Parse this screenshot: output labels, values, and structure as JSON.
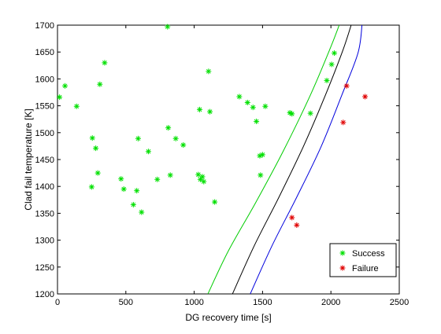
{
  "chart_data": {
    "type": "scatter",
    "title": "",
    "xlabel": "DG recovery time [s]",
    "ylabel": "Clad fail temperature [K]",
    "xlim": [
      0,
      2500
    ],
    "ylim": [
      1200,
      1700
    ],
    "xticks": [
      0,
      500,
      1000,
      1500,
      2000,
      2500
    ],
    "yticks": [
      1200,
      1250,
      1300,
      1350,
      1400,
      1450,
      1500,
      1550,
      1600,
      1650,
      1700
    ],
    "grid": false,
    "legend_position": "bottom-right",
    "series": [
      {
        "name": "Success",
        "color": "#00e000",
        "marker": "asterisk",
        "points": [
          [
            15,
            1566
          ],
          [
            55,
            1587
          ],
          [
            140,
            1549
          ],
          [
            250,
            1399
          ],
          [
            255,
            1490
          ],
          [
            280,
            1471
          ],
          [
            295,
            1425
          ],
          [
            310,
            1590
          ],
          [
            345,
            1630
          ],
          [
            465,
            1414
          ],
          [
            485,
            1395
          ],
          [
            555,
            1366
          ],
          [
            580,
            1392
          ],
          [
            590,
            1489
          ],
          [
            615,
            1352
          ],
          [
            665,
            1465
          ],
          [
            730,
            1413
          ],
          [
            805,
            1697
          ],
          [
            810,
            1509
          ],
          [
            825,
            1421
          ],
          [
            865,
            1489
          ],
          [
            920,
            1477
          ],
          [
            1030,
            1422
          ],
          [
            1040,
            1543
          ],
          [
            1045,
            1413
          ],
          [
            1060,
            1418
          ],
          [
            1070,
            1409
          ],
          [
            1105,
            1614
          ],
          [
            1115,
            1539
          ],
          [
            1150,
            1371
          ],
          [
            1330,
            1567
          ],
          [
            1390,
            1556
          ],
          [
            1430,
            1547
          ],
          [
            1455,
            1521
          ],
          [
            1480,
            1457
          ],
          [
            1485,
            1421
          ],
          [
            1500,
            1459
          ],
          [
            1520,
            1549
          ],
          [
            1700,
            1537
          ],
          [
            1715,
            1535
          ],
          [
            1850,
            1536
          ],
          [
            1970,
            1597
          ],
          [
            2005,
            1627
          ],
          [
            2025,
            1648
          ]
        ]
      },
      {
        "name": "Failure",
        "color": "#e00000",
        "marker": "asterisk",
        "points": [
          [
            1715,
            1342
          ],
          [
            1750,
            1328
          ],
          [
            2090,
            1519
          ],
          [
            2115,
            1587
          ],
          [
            2250,
            1567
          ]
        ]
      }
    ],
    "boundary_curves": [
      {
        "color": "#00cc00",
        "points": [
          [
            1100,
            1200
          ],
          [
            1250,
            1280
          ],
          [
            1450,
            1370
          ],
          [
            1650,
            1465
          ],
          [
            1850,
            1570
          ],
          [
            2000,
            1660
          ],
          [
            2075,
            1710
          ]
        ]
      },
      {
        "color": "#000000",
        "points": [
          [
            1280,
            1200
          ],
          [
            1440,
            1290
          ],
          [
            1620,
            1380
          ],
          [
            1800,
            1475
          ],
          [
            1960,
            1570
          ],
          [
            2090,
            1655
          ],
          [
            2160,
            1710
          ]
        ]
      },
      {
        "color": "#0000dd",
        "points": [
          [
            1410,
            1200
          ],
          [
            1570,
            1290
          ],
          [
            1750,
            1380
          ],
          [
            1930,
            1475
          ],
          [
            2080,
            1570
          ],
          [
            2200,
            1650
          ],
          [
            2230,
            1710
          ]
        ]
      }
    ]
  }
}
